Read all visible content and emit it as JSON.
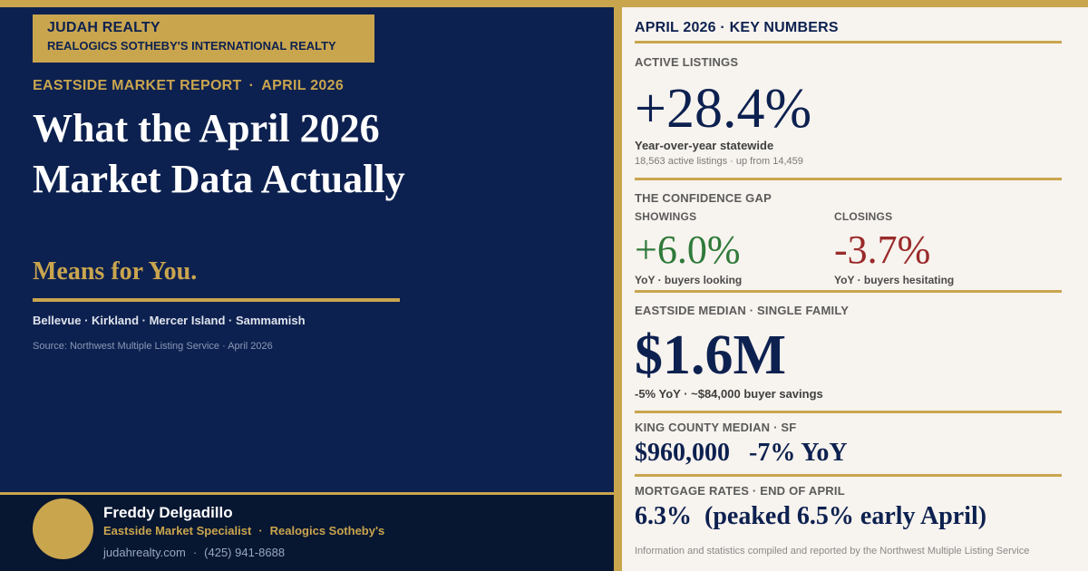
{
  "brand": {
    "name": "JUDAH REALTY",
    "affiliation": "REALOGICS SOTHEBY'S INTERNATIONAL REALTY"
  },
  "report": {
    "eyebrow_left": "EASTSIDE MARKET REPORT",
    "eyebrow_sep": "·",
    "eyebrow_right": "APRIL 2026",
    "headline": "What the April 2026 Market Data Actually",
    "headline_accent": "Means for You.",
    "areas": "Bellevue · Kirkland · Mercer Island · Sammamish",
    "source": "Source: Northwest Multiple Listing Service · April 2026"
  },
  "agent": {
    "name": "Freddy Delgadillo",
    "title": "Eastside Market Specialist",
    "company": "Realogics Sotheby's",
    "website": "judahrealty.com",
    "phone": "(425) 941-8688",
    "sep": "·"
  },
  "key_numbers": {
    "header": "APRIL 2026 · KEY NUMBERS",
    "active_listings": {
      "label": "ACTIVE LISTINGS",
      "value": "+28.4%",
      "subtitle": "Year-over-year statewide",
      "detail": "18,563 active listings · up from 14,459"
    },
    "confidence_gap": {
      "label": "THE CONFIDENCE GAP",
      "showings": {
        "label": "SHOWINGS",
        "value": "+6.0%",
        "note": "YoY · buyers looking"
      },
      "closings": {
        "label": "CLOSINGS",
        "value": "-3.7%",
        "note": "YoY · buyers hesitating"
      }
    },
    "eastside_median": {
      "label": "EASTSIDE MEDIAN · SINGLE FAMILY",
      "value": "$1.6M",
      "note": "-5% YoY  ·  ~$84,000 buyer savings"
    },
    "king_county": {
      "label": "KING COUNTY MEDIAN  ·  SF",
      "value": "$960,000   -7% YoY"
    },
    "mortgage": {
      "label": "MORTGAGE RATES  ·  END OF APRIL",
      "value": "6.3%  (peaked 6.5% early April)"
    },
    "footnote": "Information and statistics compiled and reported by the Northwest Multiple Listing Service"
  },
  "colors": {
    "navy": "#0d2150",
    "gold": "#c9a54e",
    "cream": "#f7f3ee",
    "positive": "#2f7a3a",
    "negative": "#9a2a2a"
  }
}
